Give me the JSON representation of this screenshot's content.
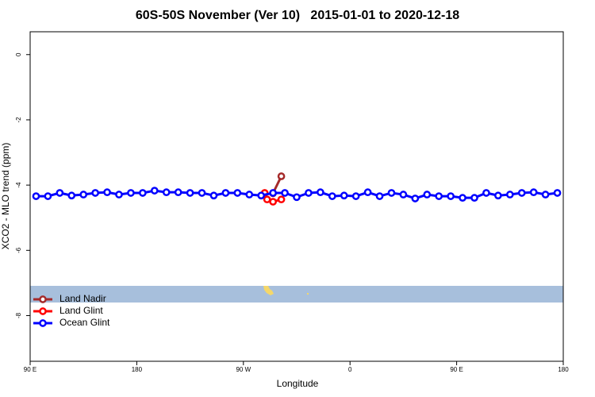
{
  "chart_data": {
    "type": "line",
    "title": "60S-50S November (Ver 10)   2015-01-01 to 2020-12-18",
    "x_label": "Longitude",
    "y_label": "XCO2 - MLO trend (ppm)",
    "xlim": [
      90,
      540
    ],
    "ylim": [
      -9.4,
      0.7
    ],
    "xticks": [
      {
        "value": 90,
        "label": "90 E"
      },
      180,
      {
        "value": 270,
        "label": "90 W"
      },
      {
        "value": 360,
        "label": "0"
      },
      {
        "value": 450,
        "label": "90 E"
      },
      {
        "value": 540,
        "label": "180"
      }
    ],
    "yticks": [
      0,
      -2,
      -4,
      -6,
      -8
    ],
    "legend": "bottomleft",
    "series": [
      {
        "name": "Land Nadir",
        "color": "#a52a2a",
        "x": [
          295,
          302
        ],
        "values": [
          -4.25,
          -3.73
        ]
      },
      {
        "name": "Land Glint",
        "color": "#ff0000",
        "x": [
          288,
          290,
          295,
          302
        ],
        "values": [
          -4.24,
          -4.44,
          -4.51,
          -4.44
        ]
      },
      {
        "name": "Ocean Glint",
        "color": "#0000ff",
        "x": [
          95,
          105,
          115,
          125,
          135,
          145,
          155,
          165,
          175,
          185,
          195,
          205,
          215,
          225,
          235,
          245,
          255,
          265,
          275,
          285,
          295,
          305,
          315,
          325,
          335,
          345,
          355,
          365,
          375,
          385,
          395,
          405,
          415,
          425,
          435,
          445,
          455,
          465,
          475,
          485,
          495,
          505,
          515,
          525,
          535
        ],
        "values": [
          -4.34,
          -4.34,
          -4.24,
          -4.32,
          -4.29,
          -4.24,
          -4.22,
          -4.29,
          -4.24,
          -4.24,
          -4.17,
          -4.22,
          -4.22,
          -4.24,
          -4.24,
          -4.32,
          -4.24,
          -4.24,
          -4.29,
          -4.32,
          -4.24,
          -4.24,
          -4.37,
          -4.24,
          -4.22,
          -4.34,
          -4.32,
          -4.34,
          -4.22,
          -4.34,
          -4.24,
          -4.29,
          -4.41,
          -4.29,
          -4.34,
          -4.34,
          -4.39,
          -4.39,
          -4.24,
          -4.32,
          -4.29,
          -4.24,
          -4.22,
          -4.29,
          -4.24
        ]
      }
    ]
  }
}
